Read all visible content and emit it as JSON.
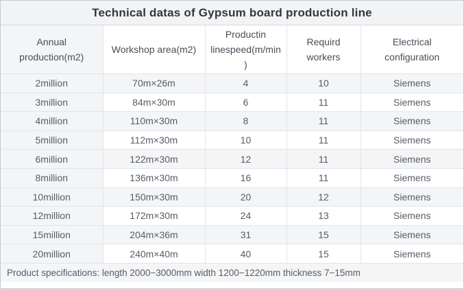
{
  "chart_data": {
    "type": "table",
    "title": "Technical datas of Gypsum board production line",
    "columns": [
      "Annual production(m2)",
      "Workshop area(m2)",
      "Productin linespeed(m/min)",
      "Requird workers",
      "Electrical configuration"
    ],
    "rows": [
      [
        "2million",
        "70m×26m",
        "4",
        "10",
        "Siemens"
      ],
      [
        "3million",
        "84m×30m",
        "6",
        "11",
        "Siemens"
      ],
      [
        "4million",
        "110m×30m",
        "8",
        "11",
        "Siemens"
      ],
      [
        "5million",
        "112m×30m",
        "10",
        "11",
        "Siemens"
      ],
      [
        "6million",
        "122m×30m",
        "12",
        "11",
        "Siemens"
      ],
      [
        "8million",
        "136m×30m",
        "16",
        "11",
        "Siemens"
      ],
      [
        "10million",
        "150m×30m",
        "20",
        "12",
        "Siemens"
      ],
      [
        "12million",
        "172m×30m",
        "24",
        "13",
        "Siemens"
      ],
      [
        "15million",
        "204m×36m",
        "31",
        "15",
        "Siemens"
      ],
      [
        "20million",
        "240m×40m",
        "40",
        "15",
        "Siemens"
      ]
    ],
    "footnote": "Product specifications: length 2000−3000mm width 1200−1220mm thickness 7−15mm",
    "layout": {
      "first_column_shaded": true,
      "odd_rows_shaded": true,
      "legend_position": "none",
      "grid": true
    }
  },
  "colors": {
    "stripe_bg": "#f4f5f7",
    "title_bg": "#f2f3f5",
    "inner_border": "#e2e4e8",
    "outer_border": "#c6c9cd",
    "title_text": "#32373c",
    "header_text": "#474e56",
    "body_text": "#565d65"
  }
}
